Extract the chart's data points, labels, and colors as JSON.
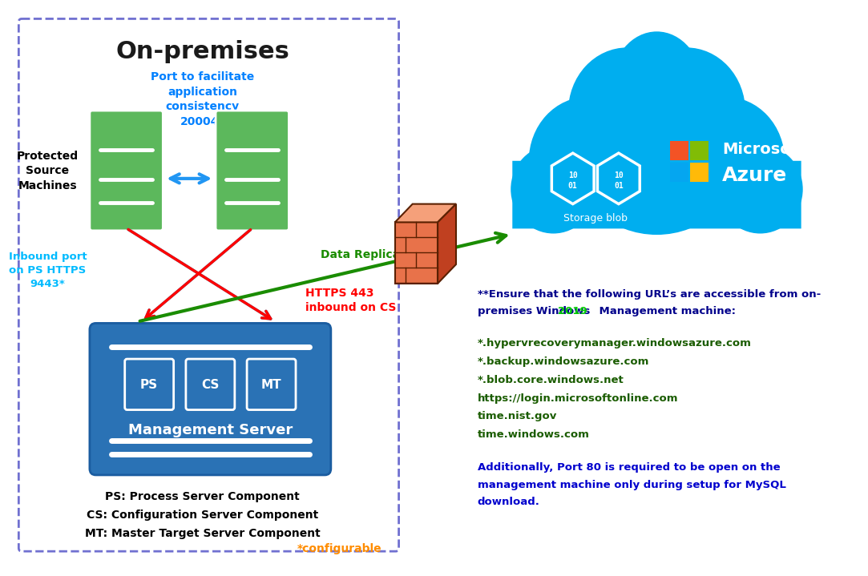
{
  "bg_color": "#ffffff",
  "title": "On-premises",
  "server_color": "#5CB85C",
  "mgmt_box_color": "#2A72B5",
  "cloud_color": "#00AEEF",
  "arrow_blue": "#00BFFF",
  "arrow_red": "#FF0000",
  "arrow_green": "#1A8C00",
  "url_color": "#1A5C00",
  "note_color": "#00008B",
  "year_color": "#00CC00",
  "configurable_color": "#FF8C00",
  "onprem_edge": "#7070D0",
  "urls": [
    "*.hypervrecoverymanager.windowsazure.com",
    "*.backup.windowsazure.com",
    "*.blob.core.windows.net",
    "https://login.microsoftonline.com",
    "time.nist.gov",
    "time.windows.com"
  ],
  "port_text": "Port to facilitate\napplication\nconsistency\n20004*",
  "inbound_text": "Inbound port\non PS HTTPS\n9443*",
  "data_rep_text": "Data Replication**",
  "https_text": "HTTPS 443\ninbound on CS",
  "protected_text": "Protected\nSource\nMachines",
  "mgmt_text": "Management Server",
  "ps_text": "PS",
  "cs_text": "CS",
  "mt_text": "MT",
  "legend1": "PS: Process Server Component",
  "legend2": "CS: Configuration Server Component",
  "legend3": "MT: Master Target Server Component",
  "configurable": "*configurable",
  "storage_blob": "Storage blob",
  "microsoft_azure_line1": "Microsoft",
  "microsoft_azure_line2": "Azure",
  "note1_part1": "**Ensure that the following URL’s are accessible from on-",
  "note1_part2a": "premises Windows ",
  "note1_year": "2019",
  "note1_part2b": "    Management machine:",
  "note2_line1": "Additionally, Port 80 is required to be open on the",
  "note2_line2": "management machine only during setup for MySQL",
  "note2_line3": "download."
}
